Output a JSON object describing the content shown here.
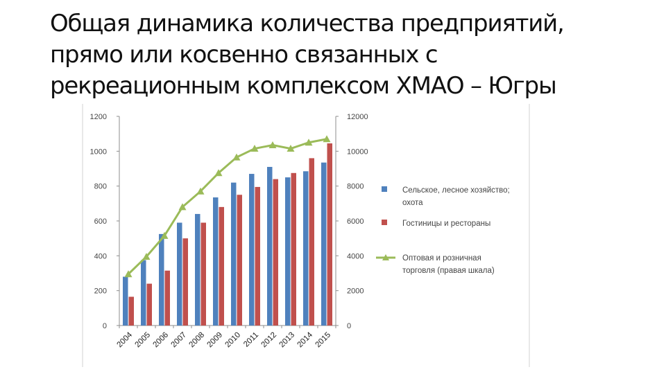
{
  "slide": {
    "title_lines": [
      "Общая динамика количества предприятий,",
      "прямо или косвенно связанных с",
      "рекреационным комплексом ХМАО – Югры"
    ]
  },
  "chart_data": {
    "type": "bar",
    "title": "",
    "categories": [
      "2004",
      "2005",
      "2006",
      "2007",
      "2008",
      "2009",
      "2010",
      "2011",
      "2012",
      "2013",
      "2014",
      "2015"
    ],
    "ylim": [
      0,
      1200
    ],
    "yticks": [
      "0",
      "200",
      "400",
      "600",
      "800",
      "1000",
      "1200"
    ],
    "y2lim": [
      0,
      12000
    ],
    "y2ticks": [
      "0",
      "2000",
      "4000",
      "6000",
      "8000",
      "10000",
      "12000"
    ],
    "grid": false,
    "legend_position": "right",
    "series": [
      {
        "name_lines": [
          "Сельское, лесное хозяйство;",
          "охота"
        ],
        "type": "bar",
        "axis": "left",
        "color": "#4f81bd",
        "values": [
          280,
          375,
          525,
          590,
          640,
          735,
          820,
          870,
          910,
          850,
          885,
          935
        ]
      },
      {
        "name_lines": [
          "Гостиницы и рестораны"
        ],
        "type": "bar",
        "axis": "left",
        "color": "#c0504d",
        "values": [
          165,
          240,
          315,
          500,
          590,
          680,
          750,
          795,
          840,
          875,
          960,
          1045
        ]
      },
      {
        "name_lines": [
          "Оптовая и розничная",
          "торговля (правая шкала)"
        ],
        "type": "line",
        "axis": "right",
        "color": "#9bbb59",
        "values": [
          2950,
          3950,
          5150,
          6800,
          7700,
          8750,
          9650,
          10150,
          10350,
          10150,
          10500,
          10700
        ]
      }
    ]
  }
}
